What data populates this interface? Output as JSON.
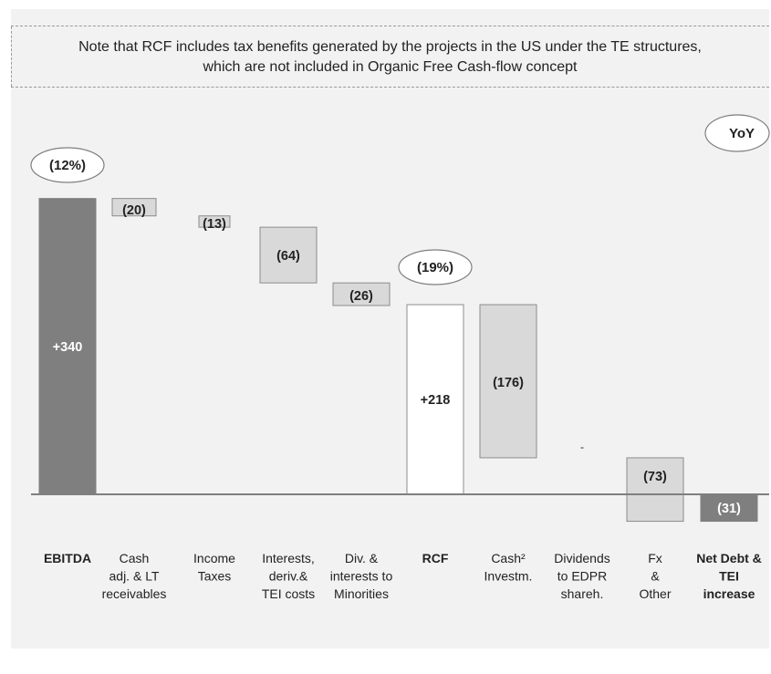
{
  "note": {
    "line1": "Note that RCF includes tax benefits generated by the projects in the US under the TE structures,",
    "line2": "which are not included in Organic Free Cash-flow concept"
  },
  "yoy_label": "YoY",
  "colors": {
    "dark": "#7f7f7f",
    "light": "#d9d9d9",
    "white": "#ffffff",
    "panel": "#f2f2f2",
    "axis": "#7f7f7f"
  },
  "chart_data": {
    "type": "bar",
    "subtype": "waterfall",
    "title": "",
    "xlabel": "",
    "ylabel": "",
    "categories": [
      {
        "lines": [
          "EBITDA"
        ],
        "bold": true
      },
      {
        "lines": [
          "Cash",
          "adj. & LT",
          "receivables"
        ],
        "bold": false
      },
      {
        "lines": [
          "Income",
          "Taxes"
        ],
        "bold": false
      },
      {
        "lines": [
          "Interests,",
          "deriv.&",
          "TEI costs"
        ],
        "bold": false
      },
      {
        "lines": [
          "Div. &",
          "interests to",
          "Minorities"
        ],
        "bold": false
      },
      {
        "lines": [
          "RCF"
        ],
        "bold": true
      },
      {
        "lines": [
          "Cash²",
          "Investm."
        ],
        "bold": false
      },
      {
        "lines": [
          "Dividends",
          "to EDPR",
          "shareh."
        ],
        "bold": false
      },
      {
        "lines": [
          "Fx",
          "&",
          "Other"
        ],
        "bold": false
      },
      {
        "lines": [
          "Net Debt &",
          "TEI",
          "increase"
        ],
        "bold": true
      }
    ],
    "bars": [
      {
        "label": "+340",
        "start": 0,
        "end": 340,
        "style": "dark"
      },
      {
        "label": "(20)",
        "start": 340,
        "end": 320,
        "style": "light"
      },
      {
        "label": "(13)",
        "start": 320,
        "end": 307,
        "style": "light"
      },
      {
        "label": "(64)",
        "start": 307,
        "end": 243,
        "style": "light"
      },
      {
        "label": "(26)",
        "start": 243,
        "end": 217,
        "style": "light"
      },
      {
        "label": "+218",
        "start": 0,
        "end": 218,
        "style": "white"
      },
      {
        "label": "(176)",
        "start": 218,
        "end": 42,
        "style": "light"
      },
      {
        "label": "-",
        "start": 42,
        "end": 42,
        "style": "none"
      },
      {
        "label": "(73)",
        "start": 42,
        "end": -31,
        "style": "light"
      },
      {
        "label": "(31)",
        "start": 0,
        "end": -31,
        "style": "dark"
      }
    ],
    "annotations": [
      {
        "text": "(12%)",
        "category_index": 0
      },
      {
        "text": "(19%)",
        "category_index": 5
      }
    ]
  }
}
